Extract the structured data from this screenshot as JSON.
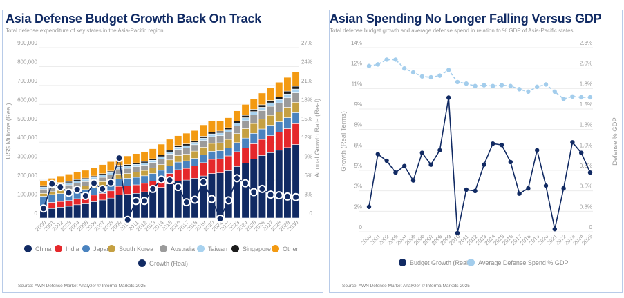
{
  "chart_data": [
    {
      "type": "bar",
      "stacked": true,
      "title": "Asia Defense Budget Growth Back On Track",
      "subtitle": "Total defense expenditure of key states in the Asia-Pacific region",
      "ylabel": "US$ Millions (Real)",
      "y2label": "Annual Growth Rate (Real)",
      "value_multiplier": 1000,
      "ylim": [
        0,
        900000
      ],
      "y2lim": [
        0,
        27
      ],
      "yticks": [
        "0",
        "100,000",
        "200,000",
        "300,000",
        "400,000",
        "500,000",
        "600,000",
        "700,000",
        "800,000",
        "900,000"
      ],
      "y2ticks": [
        "0",
        "3%",
        "6%",
        "9%",
        "12%",
        "15%",
        "18%",
        "21%",
        "24%",
        "27%"
      ],
      "categories": [
        "2000",
        "2001",
        "2002",
        "2003",
        "2004",
        "2005",
        "2006",
        "2007",
        "2008",
        "2009",
        "2010",
        "2011",
        "2012",
        "2013",
        "2014",
        "2015",
        "2016",
        "2017",
        "2018",
        "2019",
        "2020",
        "2021",
        "2022",
        "2023",
        "2024",
        "2025",
        "2026",
        "2027",
        "2028",
        "2029",
        "2030"
      ],
      "series": [
        {
          "name": "China",
          "color": "#112a63",
          "values": [
            45,
            50,
            57,
            62,
            70,
            75,
            86,
            95,
            105,
            122,
            125,
            130,
            138,
            150,
            162,
            180,
            195,
            200,
            210,
            222,
            235,
            238,
            250,
            272,
            290,
            312,
            330,
            345,
            358,
            372,
            388
          ]
        },
        {
          "name": "India",
          "color": "#e5282b",
          "values": [
            15,
            32,
            30,
            30,
            32,
            35,
            35,
            35,
            38,
            45,
            45,
            45,
            45,
            45,
            50,
            55,
            60,
            62,
            65,
            70,
            75,
            75,
            78,
            78,
            80,
            80,
            85,
            90,
            95,
            100,
            110
          ]
        },
        {
          "name": "Japan",
          "color": "#4a83bf",
          "values": [
            55,
            42,
            42,
            42,
            42,
            40,
            40,
            40,
            38,
            40,
            40,
            40,
            40,
            40,
            40,
            40,
            40,
            40,
            40,
            42,
            42,
            42,
            42,
            48,
            52,
            55,
            55,
            55,
            55,
            58,
            58
          ]
        },
        {
          "name": "South Korea",
          "color": "#c5a042",
          "values": [
            15,
            15,
            17,
            18,
            18,
            20,
            20,
            22,
            23,
            25,
            25,
            28,
            28,
            30,
            30,
            32,
            35,
            35,
            38,
            40,
            42,
            42,
            45,
            48,
            50,
            52,
            52,
            52,
            52,
            55,
            55
          ]
        },
        {
          "name": "Australia",
          "color": "#9b9b9b",
          "values": [
            22,
            22,
            22,
            22,
            22,
            22,
            22,
            23,
            24,
            26,
            27,
            28,
            28,
            28,
            30,
            30,
            32,
            33,
            34,
            35,
            36,
            38,
            38,
            40,
            42,
            45,
            45,
            48,
            48,
            50,
            50
          ]
        },
        {
          "name": "Taiwan",
          "color": "#a8d2ef",
          "values": [
            12,
            12,
            12,
            12,
            12,
            12,
            12,
            12,
            12,
            12,
            12,
            12,
            12,
            12,
            12,
            12,
            12,
            12,
            12,
            13,
            14,
            14,
            14,
            15,
            16,
            18,
            18,
            18,
            18,
            20,
            20
          ]
        },
        {
          "name": "Singapore",
          "color": "#1c1c1c",
          "values": [
            7,
            7,
            7,
            7,
            7,
            7,
            7,
            7,
            8,
            8,
            8,
            8,
            8,
            8,
            9,
            9,
            9,
            9,
            9,
            10,
            10,
            10,
            10,
            11,
            12,
            12,
            13,
            13,
            14,
            15,
            15
          ]
        },
        {
          "name": "Other",
          "color": "#f39a12",
          "values": [
            24,
            30,
            35,
            39,
            40,
            41,
            45,
            48,
            50,
            44,
            46,
            49,
            51,
            53,
            57,
            58,
            52,
            57,
            54,
            60,
            58,
            53,
            53,
            54,
            58,
            56,
            62,
            67,
            77,
            73,
            74
          ]
        }
      ],
      "line_series": {
        "name": "Growth (Real)",
        "color": "#112a63",
        "axis": "right",
        "values": [
          1.5,
          5.4,
          4.9,
          4.0,
          4.5,
          3.5,
          5.5,
          4.6,
          5.6,
          9.5,
          -0.3,
          2.7,
          2.7,
          4.6,
          6.1,
          6.0,
          4.9,
          2.5,
          2.9,
          5.7,
          3.0,
          -0.1,
          2.8,
          6.3,
          5.5,
          4.1,
          4.6,
          3.7,
          3.6,
          3.4,
          3.3
        ]
      },
      "legend": "bottom",
      "grid": true,
      "source": "Source: AWN Defense Market Analyzer © Informa Markets 2025"
    },
    {
      "type": "line",
      "title": "Asian Spending No Longer Falling Versus GDP",
      "subtitle": "Total defense budget growth and average defense spend in relation to % GDP of Asia-Pacific states",
      "ylabel": "Growth (Real Terms)",
      "y2label": "Defense % GDP",
      "ylim": [
        0,
        14
      ],
      "y2lim": [
        0,
        2.3
      ],
      "yticks": [
        "0",
        "2%",
        "3%",
        "5%",
        "6%",
        "8%",
        "9%",
        "11%",
        "12%",
        "14%"
      ],
      "y2ticks": [
        "0",
        "0.3%",
        "0.5%",
        "0.8%",
        "1.0%",
        "1.3%",
        "1.5%",
        "1.8%",
        "2.0%",
        "2.3%"
      ],
      "categories": [
        "2000",
        "2001",
        "2002",
        "2003",
        "2004",
        "2005",
        "2006",
        "2007",
        "2008",
        "2009",
        "2010",
        "2011",
        "2012",
        "2013",
        "2014",
        "2015",
        "2016",
        "2017",
        "2018",
        "2019",
        "2020",
        "2021",
        "2022",
        "2023",
        "2024",
        "2025"
      ],
      "series": [
        {
          "name": "Budget Growth (Real)",
          "color": "#112a63",
          "axis": "left",
          "dashed": false,
          "values": [
            1.9,
            5.9,
            5.4,
            4.5,
            5.0,
            3.9,
            6.0,
            5.1,
            6.2,
            10.2,
            -0.1,
            3.2,
            3.1,
            5.1,
            6.7,
            6.6,
            5.3,
            2.9,
            3.3,
            6.2,
            3.5,
            0.2,
            3.3,
            6.8,
            6.0,
            4.5
          ]
        },
        {
          "name": "Average Defense Spend % GDP",
          "color": "#a3cdec",
          "axis": "right",
          "dashed": true,
          "values": [
            2.07,
            2.09,
            2.15,
            2.15,
            2.04,
            1.99,
            1.94,
            1.93,
            1.95,
            2.02,
            1.87,
            1.85,
            1.82,
            1.83,
            1.82,
            1.83,
            1.82,
            1.78,
            1.75,
            1.81,
            1.84,
            1.75,
            1.66,
            1.69,
            1.68,
            1.68
          ]
        }
      ],
      "legend": "bottom",
      "grid": true,
      "source": "Source: AWN Defense Market Analyzer © Informa Markets 2025"
    }
  ]
}
